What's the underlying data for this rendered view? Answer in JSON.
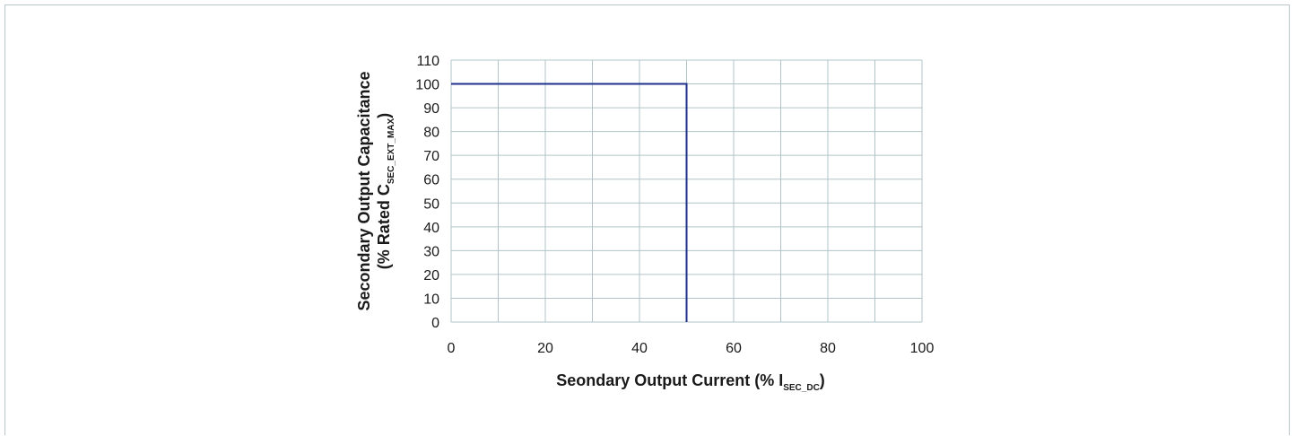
{
  "chart_data": {
    "type": "line",
    "title": "",
    "xlabel": {
      "main": "Seondary Output Current (% I",
      "sub": "SEC_DC",
      "tail": ")"
    },
    "ylabel": {
      "line1": "Secondary Output Capacitance",
      "line2_main": "(% Rated C",
      "line2_sub": "SEC_EXT_MAX",
      "line2_tail": ")"
    },
    "xlim": [
      0,
      100
    ],
    "ylim": [
      0,
      110
    ],
    "x_ticks": [
      0,
      20,
      40,
      60,
      80,
      100
    ],
    "y_ticks": [
      0,
      10,
      20,
      30,
      40,
      50,
      60,
      70,
      80,
      90,
      100,
      110
    ],
    "x_gridlines_step": 10,
    "y_gridlines_step": 10,
    "grid": true,
    "legend": "none",
    "series": [
      {
        "x": [
          0,
          50,
          50
        ],
        "y": [
          100,
          100,
          0
        ],
        "color": "#1f2f8c"
      }
    ],
    "colors": {
      "grid": "#b0c4c8",
      "line": "#1f2f8c",
      "text": "#1a1a1a"
    }
  }
}
